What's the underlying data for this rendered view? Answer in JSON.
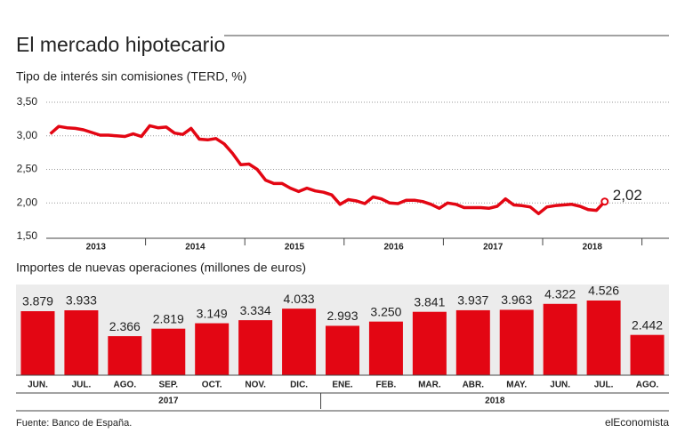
{
  "title": "El mercado hipotecario",
  "source": "Fuente: Banco de España.",
  "brand": "elEconomista",
  "chart_data": [
    {
      "type": "line",
      "title": "Tipo de interés sin comisiones (TERD, %)",
      "color": "#e30613",
      "categories": [
        null,
        null,
        null,
        null,
        null,
        null,
        "2013",
        null,
        null,
        null,
        null,
        null,
        null,
        null,
        null,
        null,
        null,
        null,
        "2014",
        null,
        null,
        null,
        null,
        null,
        null,
        null,
        null,
        null,
        null,
        null,
        "2015",
        null,
        null,
        null,
        null,
        null,
        null,
        null,
        null,
        null,
        null,
        null,
        "2016",
        null,
        null,
        null,
        null,
        null,
        null,
        null,
        null,
        null,
        null,
        null,
        "2017",
        null,
        null,
        null,
        null,
        null,
        null,
        null,
        null,
        null,
        null,
        null,
        "2018",
        null
      ],
      "values": [
        3.03,
        3.14,
        3.12,
        3.11,
        3.09,
        3.05,
        3.01,
        3.01,
        3.0,
        2.99,
        3.03,
        2.99,
        3.15,
        3.12,
        3.13,
        3.04,
        3.02,
        3.11,
        2.95,
        2.94,
        2.96,
        2.88,
        2.74,
        2.57,
        2.58,
        2.5,
        2.34,
        2.29,
        2.29,
        2.22,
        2.17,
        2.22,
        2.18,
        2.16,
        2.12,
        1.98,
        2.05,
        2.03,
        1.99,
        2.09,
        2.06,
        2.0,
        1.99,
        2.04,
        2.04,
        2.02,
        1.98,
        1.92,
        2.0,
        1.98,
        1.93,
        1.93,
        1.93,
        1.92,
        1.95,
        2.06,
        1.97,
        1.96,
        1.94,
        1.84,
        1.94,
        1.96,
        1.97,
        1.98,
        1.95,
        1.9,
        1.89,
        2.02
      ],
      "value_labels": [
        null,
        null,
        null,
        null,
        null,
        null,
        null,
        null,
        null,
        null,
        null,
        null,
        null,
        null,
        null,
        null,
        null,
        null,
        null,
        null,
        null,
        null,
        null,
        null,
        null,
        null,
        null,
        null,
        null,
        null,
        null,
        null,
        null,
        null,
        null,
        null,
        null,
        null,
        null,
        null,
        null,
        null,
        null,
        null,
        null,
        null,
        null,
        null,
        null,
        null,
        null,
        null,
        null,
        null,
        null,
        null,
        null,
        null,
        null,
        null,
        null,
        null,
        null,
        null,
        null,
        null,
        null,
        "2,02"
      ],
      "ylim": [
        1.5,
        3.5
      ],
      "yticks": [
        {
          "value": 1.5,
          "label": "1,50"
        },
        {
          "value": 2.0,
          "label": "2,00"
        },
        {
          "value": 2.5,
          "label": "2,50"
        },
        {
          "value": 3.0,
          "label": "3,00"
        },
        {
          "value": 3.5,
          "label": "3,50"
        }
      ],
      "grid": true
    },
    {
      "type": "bar",
      "title": "Importes de nuevas operaciones (millones de euros)",
      "color": "#e30613",
      "categories": [
        "JUN.",
        "JUL.",
        "AGO.",
        "SEP.",
        "OCT.",
        "NOV.",
        "DIC.",
        "ENE.",
        "FEB.",
        "MAR.",
        "ABR.",
        "MAY.",
        "JUN.",
        "JUL.",
        "AGO."
      ],
      "values": [
        3879,
        3933,
        2366,
        2819,
        3149,
        3334,
        4033,
        2993,
        3250,
        3841,
        3937,
        3963,
        4322,
        4526,
        2442
      ],
      "value_labels": [
        "3.879",
        "3.933",
        "2.366",
        "2.819",
        "3.149",
        "3.334",
        "4.033",
        "2.993",
        "3.250",
        "3.841",
        "3.937",
        "3.963",
        "4.322",
        "4.526",
        "2.442"
      ],
      "group_labels": [
        "2017",
        "2018"
      ]
    }
  ]
}
